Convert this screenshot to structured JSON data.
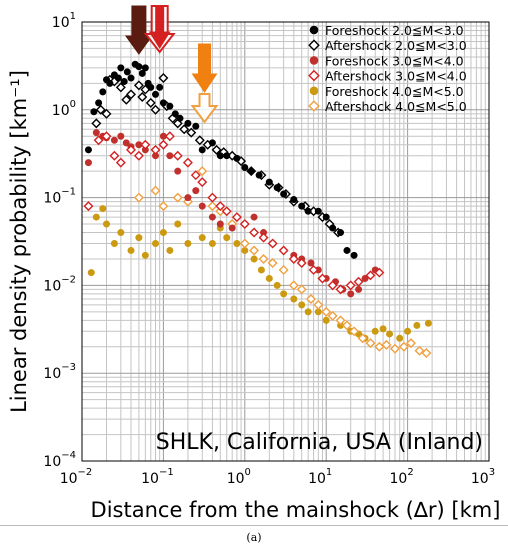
{
  "caption": "(a)",
  "chart_data": {
    "type": "scatter",
    "xscale": "log",
    "yscale": "log",
    "xlim": [
      0.01,
      1000
    ],
    "ylim": [
      0.0001,
      10
    ],
    "grid": true,
    "xlabel": "Distance from the mainshock (∆r) [km]",
    "ylabel": "Linear density probability [km⁻¹]",
    "x_ticks": [
      {
        "base": "10",
        "exp": "−2"
      },
      {
        "base": "10",
        "exp": "−1"
      },
      {
        "base": "10",
        "exp": "0"
      },
      {
        "base": "10",
        "exp": "1"
      },
      {
        "base": "10",
        "exp": "2"
      },
      {
        "base": "10",
        "exp": "3"
      }
    ],
    "y_ticks": [
      {
        "base": "10",
        "exp": "−4"
      },
      {
        "base": "10",
        "exp": "−3"
      },
      {
        "base": "10",
        "exp": "−2"
      },
      {
        "base": "10",
        "exp": "−1"
      },
      {
        "base": "10",
        "exp": "0"
      },
      {
        "base": "10",
        "exp": "1"
      }
    ],
    "annotation": "SHLK, California, USA (Inland)",
    "legend_position": "top-right",
    "arrows": [
      {
        "x": 0.05,
        "color": "#5a1c10",
        "filled": true
      },
      {
        "x": 0.09,
        "color": "#d42020",
        "filled": false
      },
      {
        "x": 0.09,
        "color": "#d42020",
        "filled": true
      },
      {
        "x": 0.32,
        "color": "#f08010",
        "filled": true
      },
      {
        "x": 0.32,
        "color": "#f0a040",
        "filled": false
      }
    ],
    "series": [
      {
        "name": "Foreshock 2.0≦M<3.0",
        "marker": "circle",
        "filled": true,
        "color": "#000000",
        "points": [
          [
            0.012,
            0.35
          ],
          [
            0.014,
            0.95
          ],
          [
            0.016,
            1.2
          ],
          [
            0.018,
            1.6
          ],
          [
            0.02,
            2.2
          ],
          [
            0.022,
            2.0
          ],
          [
            0.025,
            2.5
          ],
          [
            0.028,
            2.3
          ],
          [
            0.03,
            3.0
          ],
          [
            0.033,
            2.1
          ],
          [
            0.036,
            2.7
          ],
          [
            0.04,
            2.3
          ],
          [
            0.045,
            3.3
          ],
          [
            0.05,
            3.1
          ],
          [
            0.055,
            2.6
          ],
          [
            0.06,
            3.0
          ],
          [
            0.065,
            2.0
          ],
          [
            0.07,
            1.8
          ],
          [
            0.08,
            1.5
          ],
          [
            0.09,
            1.8
          ],
          [
            0.1,
            1.2
          ],
          [
            0.12,
            1.1
          ],
          [
            0.14,
            0.9
          ],
          [
            0.16,
            0.8
          ],
          [
            0.2,
            0.7
          ],
          [
            0.25,
            0.65
          ],
          [
            0.3,
            0.35
          ],
          [
            0.4,
            0.42
          ],
          [
            0.5,
            0.3
          ],
          [
            0.6,
            0.3
          ],
          [
            0.8,
            0.28
          ],
          [
            1.0,
            0.22
          ],
          [
            1.2,
            0.2
          ],
          [
            1.5,
            0.18
          ],
          [
            2.0,
            0.15
          ],
          [
            2.5,
            0.13
          ],
          [
            3.0,
            0.11
          ],
          [
            4.0,
            0.095
          ],
          [
            5.0,
            0.08
          ],
          [
            6.0,
            0.07
          ],
          [
            8.0,
            0.07
          ],
          [
            10.0,
            0.06
          ],
          [
            12.0,
            0.045
          ],
          [
            15.0,
            0.04
          ],
          [
            18.0,
            0.025
          ],
          [
            22.0,
            0.022
          ]
        ]
      },
      {
        "name": "Aftershock 2.0≦M<3.0",
        "marker": "diamond",
        "filled": false,
        "color": "#000000",
        "points": [
          [
            0.015,
            0.7
          ],
          [
            0.017,
            1.0
          ],
          [
            0.02,
            0.9
          ],
          [
            0.022,
            2.2
          ],
          [
            0.025,
            2.1
          ],
          [
            0.03,
            1.8
          ],
          [
            0.035,
            1.3
          ],
          [
            0.04,
            1.5
          ],
          [
            0.05,
            1.9
          ],
          [
            0.055,
            1.4
          ],
          [
            0.06,
            1.7
          ],
          [
            0.07,
            1.2
          ],
          [
            0.08,
            1.0
          ],
          [
            0.1,
            2.3
          ],
          [
            0.11,
            1.1
          ],
          [
            0.13,
            0.8
          ],
          [
            0.15,
            0.7
          ],
          [
            0.18,
            0.6
          ],
          [
            0.22,
            0.55
          ],
          [
            0.28,
            0.45
          ],
          [
            0.35,
            0.4
          ],
          [
            0.45,
            0.35
          ],
          [
            0.55,
            0.33
          ],
          [
            0.7,
            0.3
          ],
          [
            0.9,
            0.26
          ],
          [
            1.2,
            0.2
          ],
          [
            1.6,
            0.18
          ],
          [
            2.0,
            0.14
          ],
          [
            2.6,
            0.13
          ],
          [
            3.2,
            0.11
          ],
          [
            4.0,
            0.09
          ],
          [
            5.5,
            0.08
          ],
          [
            7.0,
            0.07
          ],
          [
            9.0,
            0.06
          ],
          [
            11.0,
            0.05
          ],
          [
            14.0,
            0.04
          ]
        ]
      },
      {
        "name": "Foreshock 3.0≦M<4.0",
        "marker": "circle",
        "filled": true,
        "color": "#c0302c",
        "points": [
          [
            0.012,
            0.25
          ],
          [
            0.015,
            0.55
          ],
          [
            0.018,
            0.5
          ],
          [
            0.02,
            0.48
          ],
          [
            0.025,
            0.45
          ],
          [
            0.03,
            0.5
          ],
          [
            0.035,
            0.42
          ],
          [
            0.04,
            0.38
          ],
          [
            0.05,
            0.4
          ],
          [
            0.06,
            0.35
          ],
          [
            0.08,
            0.3
          ],
          [
            0.1,
            0.5
          ],
          [
            0.12,
            0.3
          ],
          [
            0.15,
            0.2
          ],
          [
            0.2,
            0.1
          ],
          [
            0.25,
            0.12
          ],
          [
            0.3,
            0.08
          ],
          [
            0.4,
            0.06
          ],
          [
            0.5,
            0.05
          ],
          [
            0.7,
            0.045
          ],
          [
            1.0,
            0.05
          ],
          [
            1.3,
            0.06
          ],
          [
            1.7,
            0.04
          ],
          [
            2.2,
            0.03
          ],
          [
            3.0,
            0.025
          ],
          [
            4.0,
            0.022
          ],
          [
            5.0,
            0.02
          ],
          [
            6.5,
            0.018
          ],
          [
            8.0,
            0.015
          ],
          [
            10.0,
            0.012
          ],
          [
            13.0,
            0.011
          ],
          [
            16.0,
            0.009
          ],
          [
            20.0,
            0.008
          ],
          [
            25.0,
            0.009
          ],
          [
            30.0,
            0.012
          ],
          [
            40.0,
            0.015
          ]
        ]
      },
      {
        "name": "Aftershock 3.0≦M<4.0",
        "marker": "diamond",
        "filled": false,
        "color": "#d42020",
        "points": [
          [
            0.012,
            0.08
          ],
          [
            0.016,
            0.45
          ],
          [
            0.02,
            0.5
          ],
          [
            0.025,
            0.3
          ],
          [
            0.03,
            0.25
          ],
          [
            0.04,
            0.35
          ],
          [
            0.05,
            0.3
          ],
          [
            0.06,
            0.4
          ],
          [
            0.08,
            0.35
          ],
          [
            0.1,
            0.4
          ],
          [
            0.12,
            0.5
          ],
          [
            0.15,
            0.3
          ],
          [
            0.2,
            0.25
          ],
          [
            0.25,
            0.18
          ],
          [
            0.3,
            0.15
          ],
          [
            0.4,
            0.1
          ],
          [
            0.5,
            0.08
          ],
          [
            0.6,
            0.07
          ],
          [
            0.8,
            0.06
          ],
          [
            1.0,
            0.05
          ],
          [
            1.3,
            0.04
          ],
          [
            1.7,
            0.035
          ],
          [
            2.2,
            0.03
          ],
          [
            3.0,
            0.025
          ],
          [
            4.0,
            0.02
          ],
          [
            5.0,
            0.018
          ],
          [
            7.0,
            0.015
          ],
          [
            9.0,
            0.012
          ],
          [
            12.0,
            0.01
          ],
          [
            15.0,
            0.009
          ],
          [
            20.0,
            0.01
          ],
          [
            25.0,
            0.011
          ],
          [
            35.0,
            0.013
          ],
          [
            45.0,
            0.014
          ]
        ]
      },
      {
        "name": "Foreshock 4.0≦M<5.0",
        "marker": "circle",
        "filled": true,
        "color": "#cc9a10",
        "points": [
          [
            0.013,
            0.014
          ],
          [
            0.015,
            0.06
          ],
          [
            0.018,
            0.075
          ],
          [
            0.02,
            0.05
          ],
          [
            0.025,
            0.03
          ],
          [
            0.03,
            0.04
          ],
          [
            0.04,
            0.025
          ],
          [
            0.05,
            0.035
          ],
          [
            0.06,
            0.022
          ],
          [
            0.08,
            0.03
          ],
          [
            0.1,
            0.04
          ],
          [
            0.12,
            0.025
          ],
          [
            0.15,
            0.05
          ],
          [
            0.2,
            0.03
          ],
          [
            0.3,
            0.035
          ],
          [
            0.4,
            0.03
          ],
          [
            0.5,
            0.045
          ],
          [
            0.6,
            0.035
          ],
          [
            0.8,
            0.03
          ],
          [
            1.0,
            0.025
          ],
          [
            1.3,
            0.02
          ],
          [
            1.6,
            0.015
          ],
          [
            2.0,
            0.012
          ],
          [
            2.5,
            0.01
          ],
          [
            3.0,
            0.008
          ],
          [
            4.0,
            0.007
          ],
          [
            5.0,
            0.006
          ],
          [
            6.0,
            0.005
          ],
          [
            8.0,
            0.005
          ],
          [
            10.0,
            0.004
          ],
          [
            15.0,
            0.0035
          ],
          [
            20.0,
            0.003
          ],
          [
            25.0,
            0.0028
          ],
          [
            30.0,
            0.0025
          ],
          [
            40.0,
            0.003
          ],
          [
            50.0,
            0.0032
          ],
          [
            60.0,
            0.0028
          ],
          [
            80.0,
            0.0025
          ],
          [
            100.0,
            0.003
          ],
          [
            130.0,
            0.0035
          ],
          [
            180.0,
            0.0037
          ]
        ]
      },
      {
        "name": "Aftershock 4.0≦M<5.0",
        "marker": "diamond",
        "filled": false,
        "color": "#f0a040",
        "points": [
          [
            0.05,
            0.1
          ],
          [
            0.08,
            0.12
          ],
          [
            0.1,
            0.08
          ],
          [
            0.15,
            0.1
          ],
          [
            0.2,
            0.09
          ],
          [
            0.3,
            0.2
          ],
          [
            0.4,
            0.08
          ],
          [
            0.5,
            0.07
          ],
          [
            0.7,
            0.05
          ],
          [
            1.0,
            0.03
          ],
          [
            1.3,
            0.025
          ],
          [
            1.7,
            0.02
          ],
          [
            2.2,
            0.018
          ],
          [
            3.0,
            0.015
          ],
          [
            4.0,
            0.01
          ],
          [
            5.0,
            0.009
          ],
          [
            6.5,
            0.007
          ],
          [
            8.0,
            0.006
          ],
          [
            10.0,
            0.005
          ],
          [
            12.0,
            0.0045
          ],
          [
            15.0,
            0.004
          ],
          [
            18.0,
            0.0035
          ],
          [
            22.0,
            0.003
          ],
          [
            28.0,
            0.0025
          ],
          [
            35.0,
            0.0022
          ],
          [
            45.0,
            0.002
          ],
          [
            55.0,
            0.0021
          ],
          [
            70.0,
            0.0019
          ],
          [
            90.0,
            0.002
          ],
          [
            110.0,
            0.0022
          ],
          [
            140.0,
            0.0018
          ],
          [
            170.0,
            0.0017
          ]
        ]
      }
    ]
  }
}
